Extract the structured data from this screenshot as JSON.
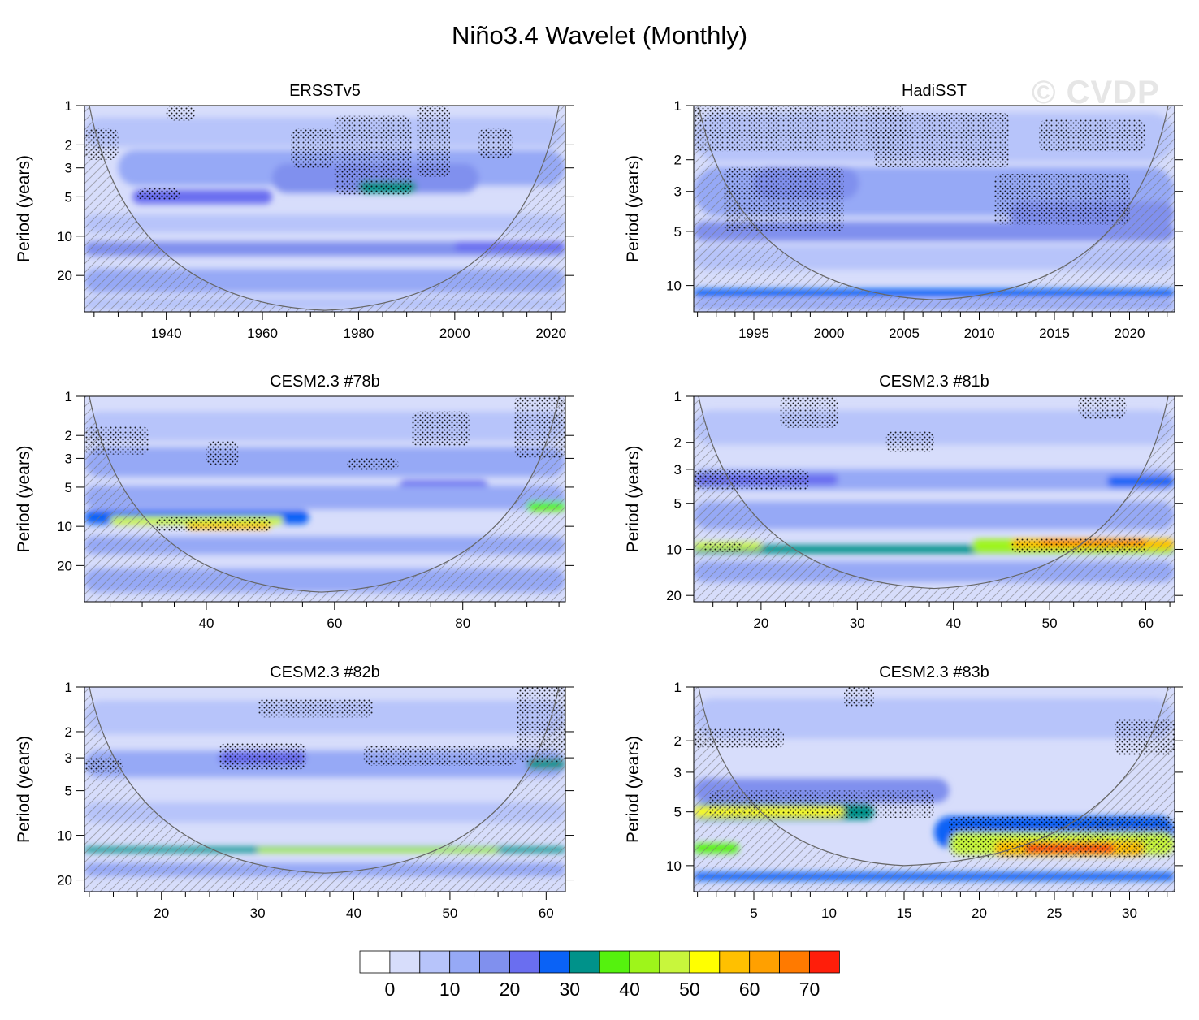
{
  "figure_title": "Niño3.4 Wavelet (Monthly)",
  "watermark": "© CVDP",
  "colorbar": {
    "levels": [
      "0",
      "10",
      "20",
      "30",
      "40",
      "50",
      "60",
      "70"
    ],
    "colors": [
      "#ffffff",
      "#d7ddfb",
      "#b7c4fa",
      "#96a9f6",
      "#8090ee",
      "#6a6ef0",
      "#0a62f6",
      "#00928a",
      "#55f20e",
      "#9ef51a",
      "#c8f63c",
      "#ffff00",
      "#ffc000",
      "#ffa000",
      "#ff7a00",
      "#ff1e0a"
    ]
  },
  "chart_data": [
    {
      "type": "heatmap",
      "title": "ERSSTv5",
      "ylabel": "Period (years)",
      "xlim": [
        1923,
        2023
      ],
      "ylog": true,
      "ylim": [
        1,
        38
      ],
      "yticks": [
        1,
        2,
        3,
        5,
        10,
        20
      ],
      "xticks": [
        1940,
        1960,
        1980,
        2000,
        2020
      ],
      "coi_min": [
        1973,
        37
      ],
      "power_bands": [
        {
          "x0": 1923,
          "x1": 2023,
          "period": 1.6,
          "width": 0.25,
          "level": 1
        },
        {
          "x0": 1930,
          "x1": 2023,
          "period": 3.0,
          "width": 0.3,
          "level": 2
        },
        {
          "x0": 1933,
          "x1": 1962,
          "period": 5.0,
          "width": 0.12,
          "level": 4
        },
        {
          "x0": 1962,
          "x1": 2005,
          "period": 3.6,
          "width": 0.25,
          "level": 3
        },
        {
          "x0": 1980,
          "x1": 1992,
          "period": 4.2,
          "width": 0.1,
          "level": 6
        },
        {
          "x0": 1923,
          "x1": 2023,
          "period": 8.0,
          "width": 0.15,
          "level": 1
        },
        {
          "x0": 1923,
          "x1": 2023,
          "period": 12.5,
          "width": 0.12,
          "level": 3
        },
        {
          "x0": 2000,
          "x1": 2023,
          "period": 12.0,
          "width": 0.08,
          "level": 4
        },
        {
          "x0": 1923,
          "x1": 2023,
          "period": 22.0,
          "width": 0.2,
          "level": 2
        },
        {
          "x0": 1923,
          "x1": 2023,
          "period": 33.0,
          "width": 0.1,
          "level": 1
        }
      ],
      "stipple": [
        {
          "x0": 1923,
          "x1": 1930,
          "p0": 1.5,
          "p1": 2.6
        },
        {
          "x0": 1940,
          "x1": 1946,
          "p0": 1.0,
          "p1": 1.3
        },
        {
          "x0": 1934,
          "x1": 1943,
          "p0": 4.3,
          "p1": 5.3
        },
        {
          "x0": 1966,
          "x1": 1975,
          "p0": 1.5,
          "p1": 3.0
        },
        {
          "x0": 1975,
          "x1": 1991,
          "p0": 1.2,
          "p1": 4.8
        },
        {
          "x0": 1992,
          "x1": 1999,
          "p0": 1.0,
          "p1": 3.5
        },
        {
          "x0": 2005,
          "x1": 2012,
          "p0": 1.5,
          "p1": 2.5
        }
      ]
    },
    {
      "type": "heatmap",
      "title": "HadiSST",
      "ylabel": "Period (years)",
      "xlim": [
        1991,
        2023
      ],
      "ylog": true,
      "ylim": [
        1,
        14
      ],
      "yticks": [
        1,
        2,
        3,
        5,
        10
      ],
      "xticks": [
        1995,
        2000,
        2005,
        2010,
        2015,
        2020
      ],
      "coi_min": [
        2007,
        12
      ],
      "power_bands": [
        {
          "x0": 1991,
          "x1": 2023,
          "period": 1.5,
          "width": 0.3,
          "level": 1
        },
        {
          "x0": 1991,
          "x1": 2023,
          "period": 3.0,
          "width": 0.3,
          "level": 2
        },
        {
          "x0": 1995,
          "x1": 2002,
          "period": 2.7,
          "width": 0.2,
          "level": 3
        },
        {
          "x0": 2012,
          "x1": 2023,
          "period": 4.0,
          "width": 0.15,
          "level": 3
        },
        {
          "x0": 1991,
          "x1": 2023,
          "period": 5.0,
          "width": 0.12,
          "level": 3
        },
        {
          "x0": 1991,
          "x1": 2023,
          "period": 7.0,
          "width": 0.15,
          "level": 1
        },
        {
          "x0": 1991,
          "x1": 2023,
          "period": 11.0,
          "width": 0.05,
          "level": 5
        },
        {
          "x0": 1991,
          "x1": 2023,
          "period": 12.8,
          "width": 0.06,
          "level": 2
        }
      ],
      "stipple": [
        {
          "x0": 1991,
          "x1": 2005,
          "p0": 1.0,
          "p1": 1.8
        },
        {
          "x0": 1993,
          "x1": 2001,
          "p0": 2.2,
          "p1": 5.0
        },
        {
          "x0": 2003,
          "x1": 2012,
          "p0": 1.1,
          "p1": 2.2
        },
        {
          "x0": 2014,
          "x1": 2021,
          "p0": 1.2,
          "p1": 1.8
        },
        {
          "x0": 2011,
          "x1": 2020,
          "p0": 2.4,
          "p1": 4.6
        }
      ]
    },
    {
      "type": "heatmap",
      "title": "CESM2.3 #78b",
      "ylabel": "Period (years)",
      "xlim": [
        21,
        96
      ],
      "ylog": true,
      "ylim": [
        1,
        38
      ],
      "yticks": [
        1,
        2,
        3,
        5,
        10,
        20
      ],
      "xticks": [
        40,
        60,
        80
      ],
      "coi_min": [
        58,
        32
      ],
      "power_bands": [
        {
          "x0": 21,
          "x1": 96,
          "period": 1.7,
          "width": 0.25,
          "level": 1
        },
        {
          "x0": 21,
          "x1": 96,
          "period": 3.2,
          "width": 0.25,
          "level": 2
        },
        {
          "x0": 70,
          "x1": 84,
          "period": 5.0,
          "width": 0.12,
          "level": 4
        },
        {
          "x0": 21,
          "x1": 96,
          "period": 6.0,
          "width": 0.2,
          "level": 2
        },
        {
          "x0": 21,
          "x1": 56,
          "period": 8.5,
          "width": 0.12,
          "level": 5
        },
        {
          "x0": 25,
          "x1": 52,
          "period": 9.0,
          "width": 0.07,
          "level": 9
        },
        {
          "x0": 37,
          "x1": 50,
          "period": 10.0,
          "width": 0.05,
          "level": 11
        },
        {
          "x0": 90,
          "x1": 96,
          "period": 7.0,
          "width": 0.08,
          "level": 7
        },
        {
          "x0": 21,
          "x1": 96,
          "period": 14.0,
          "width": 0.15,
          "level": 2
        },
        {
          "x0": 21,
          "x1": 96,
          "period": 26.0,
          "width": 0.2,
          "level": 2
        }
      ],
      "stipple": [
        {
          "x0": 21,
          "x1": 31,
          "p0": 1.7,
          "p1": 2.8
        },
        {
          "x0": 40,
          "x1": 45,
          "p0": 2.2,
          "p1": 3.4
        },
        {
          "x0": 62,
          "x1": 70,
          "p0": 3.0,
          "p1": 3.7
        },
        {
          "x0": 72,
          "x1": 81,
          "p0": 1.3,
          "p1": 2.4
        },
        {
          "x0": 32,
          "x1": 50,
          "p0": 8.5,
          "p1": 11.0
        },
        {
          "x0": 88,
          "x1": 96,
          "p0": 1.0,
          "p1": 3.0
        }
      ]
    },
    {
      "type": "heatmap",
      "title": "CESM2.3 #81b",
      "ylabel": "Period (years)",
      "xlim": [
        13,
        63
      ],
      "ylog": true,
      "ylim": [
        1,
        22
      ],
      "yticks": [
        1,
        2,
        3,
        5,
        10,
        20
      ],
      "xticks": [
        20,
        30,
        40,
        50,
        60
      ],
      "coi_min": [
        38,
        18
      ],
      "power_bands": [
        {
          "x0": 13,
          "x1": 63,
          "period": 1.6,
          "width": 0.25,
          "level": 1
        },
        {
          "x0": 13,
          "x1": 63,
          "period": 3.5,
          "width": 0.15,
          "level": 2
        },
        {
          "x0": 13,
          "x1": 28,
          "period": 3.5,
          "width": 0.08,
          "level": 4
        },
        {
          "x0": 56,
          "x1": 63,
          "period": 3.6,
          "width": 0.08,
          "level": 5
        },
        {
          "x0": 13,
          "x1": 63,
          "period": 6.0,
          "width": 0.2,
          "level": 2
        },
        {
          "x0": 13,
          "x1": 63,
          "period": 10.0,
          "width": 0.06,
          "level": 6
        },
        {
          "x0": 13,
          "x1": 20,
          "period": 9.5,
          "width": 0.05,
          "level": 9
        },
        {
          "x0": 42,
          "x1": 63,
          "period": 9.5,
          "width": 0.1,
          "level": 8
        },
        {
          "x0": 46,
          "x1": 63,
          "period": 9.2,
          "width": 0.07,
          "level": 11
        },
        {
          "x0": 49,
          "x1": 60,
          "period": 9.0,
          "width": 0.04,
          "level": 13
        },
        {
          "x0": 13,
          "x1": 63,
          "period": 14.0,
          "width": 0.15,
          "level": 2
        }
      ],
      "stipple": [
        {
          "x0": 13,
          "x1": 25,
          "p0": 3.0,
          "p1": 4.1
        },
        {
          "x0": 14,
          "x1": 18,
          "p0": 9.0,
          "p1": 10.4
        },
        {
          "x0": 22,
          "x1": 28,
          "p0": 1.0,
          "p1": 1.6
        },
        {
          "x0": 33,
          "x1": 38,
          "p0": 1.7,
          "p1": 2.3
        },
        {
          "x0": 46,
          "x1": 60,
          "p0": 8.5,
          "p1": 10.5
        },
        {
          "x0": 53,
          "x1": 58,
          "p0": 1.0,
          "p1": 1.4
        }
      ]
    },
    {
      "type": "heatmap",
      "title": "CESM2.3 #82b",
      "ylabel": "Period (years)",
      "xlim": [
        12,
        62
      ],
      "ylog": true,
      "ylim": [
        1,
        24
      ],
      "yticks": [
        1,
        2,
        3,
        5,
        10,
        20
      ],
      "xticks": [
        20,
        30,
        40,
        50,
        60
      ],
      "coi_min": [
        37,
        18
      ],
      "power_bands": [
        {
          "x0": 12,
          "x1": 62,
          "period": 1.6,
          "width": 0.25,
          "level": 1
        },
        {
          "x0": 12,
          "x1": 62,
          "period": 3.3,
          "width": 0.2,
          "level": 2
        },
        {
          "x0": 26,
          "x1": 35,
          "period": 3.0,
          "width": 0.1,
          "level": 4
        },
        {
          "x0": 58,
          "x1": 62,
          "period": 3.3,
          "width": 0.08,
          "level": 6
        },
        {
          "x0": 12,
          "x1": 62,
          "period": 7.0,
          "width": 0.15,
          "level": 1
        },
        {
          "x0": 12,
          "x1": 62,
          "period": 12.5,
          "width": 0.04,
          "level": 6
        },
        {
          "x0": 30,
          "x1": 55,
          "period": 12.6,
          "width": 0.03,
          "level": 8
        },
        {
          "x0": 12,
          "x1": 62,
          "period": 17.0,
          "width": 0.1,
          "level": 2
        }
      ],
      "stipple": [
        {
          "x0": 12,
          "x1": 16,
          "p0": 3.0,
          "p1": 3.8
        },
        {
          "x0": 26,
          "x1": 35,
          "p0": 2.4,
          "p1": 3.6
        },
        {
          "x0": 41,
          "x1": 57,
          "p0": 2.5,
          "p1": 3.4
        },
        {
          "x0": 30,
          "x1": 42,
          "p0": 1.2,
          "p1": 1.6
        },
        {
          "x0": 57,
          "x1": 62,
          "p0": 1.0,
          "p1": 3.2
        }
      ]
    },
    {
      "type": "heatmap",
      "title": "CESM2.3 #83b",
      "ylabel": "Period (years)",
      "xlim": [
        1,
        33
      ],
      "ylog": true,
      "ylim": [
        1,
        14
      ],
      "yticks": [
        1,
        2,
        3,
        5,
        10
      ],
      "xticks": [
        5,
        10,
        15,
        20,
        25,
        30
      ],
      "coi_min": [
        15,
        10
      ],
      "power_bands": [
        {
          "x0": 1,
          "x1": 33,
          "period": 1.5,
          "width": 0.25,
          "level": 1
        },
        {
          "x0": 1,
          "x1": 18,
          "period": 3.8,
          "width": 0.15,
          "level": 3
        },
        {
          "x0": 1,
          "x1": 13,
          "period": 5.0,
          "width": 0.1,
          "level": 6
        },
        {
          "x0": 1,
          "x1": 11,
          "period": 5.0,
          "width": 0.06,
          "level": 10
        },
        {
          "x0": 17,
          "x1": 33,
          "period": 6.5,
          "width": 0.2,
          "level": 5
        },
        {
          "x0": 18,
          "x1": 33,
          "period": 7.5,
          "width": 0.14,
          "level": 9
        },
        {
          "x0": 21,
          "x1": 31,
          "period": 8.0,
          "width": 0.09,
          "level": 11
        },
        {
          "x0": 23,
          "x1": 29,
          "period": 8.0,
          "width": 0.05,
          "level": 14
        },
        {
          "x0": 1,
          "x1": 33,
          "period": 11.5,
          "width": 0.05,
          "level": 5
        },
        {
          "x0": 1,
          "x1": 4,
          "period": 8.0,
          "width": 0.06,
          "level": 7
        }
      ],
      "stipple": [
        {
          "x0": 1,
          "x1": 7,
          "p0": 1.7,
          "p1": 2.2
        },
        {
          "x0": 2,
          "x1": 17,
          "p0": 3.8,
          "p1": 5.4
        },
        {
          "x0": 11,
          "x1": 13,
          "p0": 1.0,
          "p1": 1.3
        },
        {
          "x0": 18,
          "x1": 33,
          "p0": 5.3,
          "p1": 9.0
        },
        {
          "x0": 29,
          "x1": 33,
          "p0": 1.5,
          "p1": 2.4
        }
      ]
    }
  ]
}
